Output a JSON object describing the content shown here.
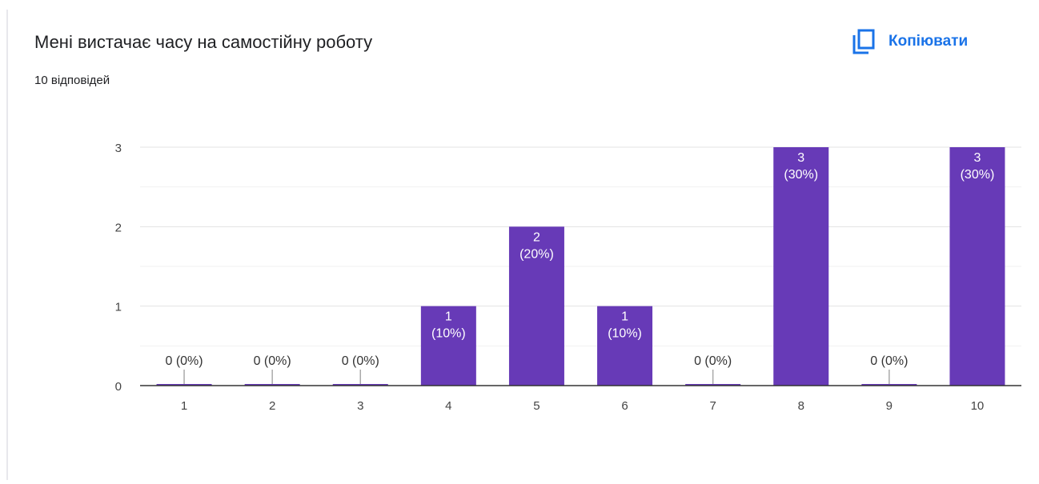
{
  "header": {
    "title": "Мені вистачає часу на самостійну роботу",
    "responses": "10 відповідей",
    "copy_label": "Копіювати"
  },
  "colors": {
    "bar": "#673ab7",
    "accent": "#1a73e8",
    "grid": "#e6e6e6",
    "axis": "#333333"
  },
  "chart_data": {
    "type": "bar",
    "categories": [
      "1",
      "2",
      "3",
      "4",
      "5",
      "6",
      "7",
      "8",
      "9",
      "10"
    ],
    "values": [
      0,
      0,
      0,
      1,
      2,
      1,
      0,
      3,
      0,
      3
    ],
    "data_labels": [
      "0 (0%)",
      "0 (0%)",
      "0 (0%)",
      "1|(10%)",
      "2|(20%)",
      "1|(10%)",
      "0 (0%)",
      "3|(30%)",
      "0 (0%)",
      "3|(30%)"
    ],
    "ylim": [
      0,
      3
    ],
    "yticks": [
      "0",
      "1",
      "2",
      "3"
    ],
    "grid": true,
    "legend": "none"
  }
}
